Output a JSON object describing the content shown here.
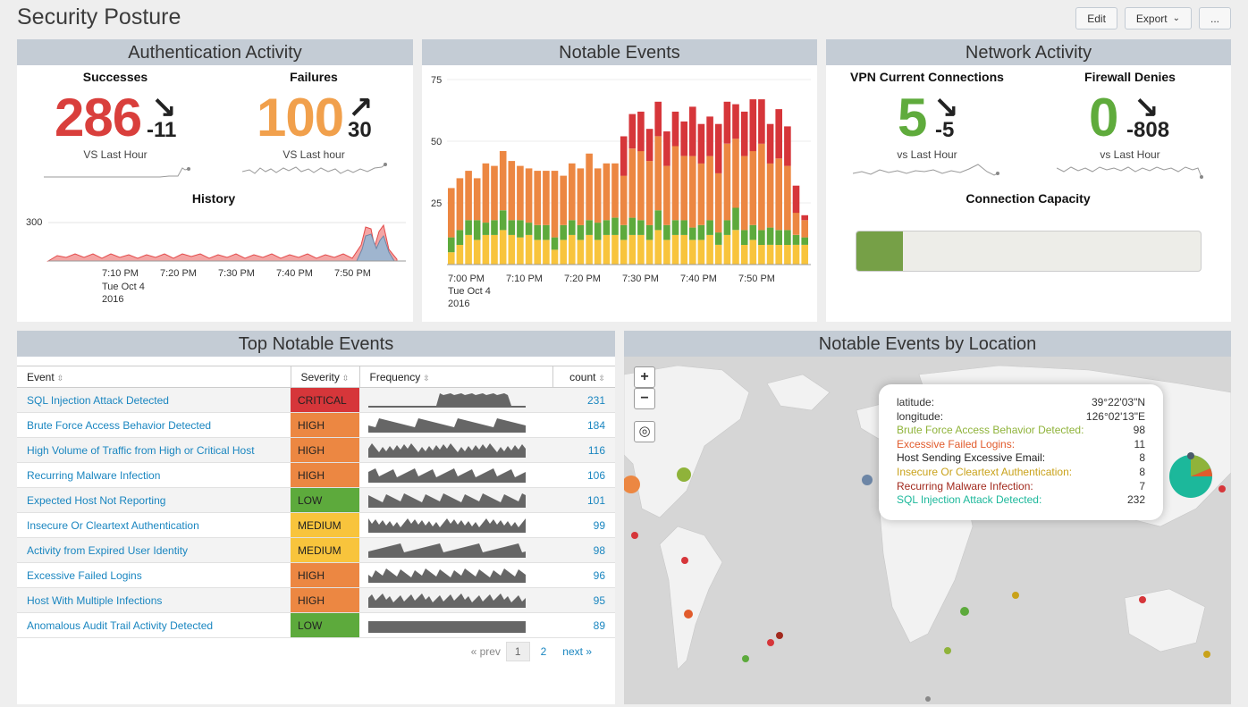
{
  "page": {
    "title": "Security Posture"
  },
  "actions": {
    "edit": "Edit",
    "export": "Export",
    "more": "..."
  },
  "auth": {
    "title": "Authentication Activity",
    "successes": {
      "label": "Successes",
      "value": "286",
      "delta": "-11",
      "sublabel": "VS Last Hour",
      "color": "#d93f3c"
    },
    "failures": {
      "label": "Failures",
      "value": "100",
      "delta": "30",
      "sublabel": "VS Last hour",
      "color": "#f1a04c"
    },
    "history": {
      "title": "History",
      "y_tick": "300",
      "x_ticks": [
        "7:10 PM",
        "7:20 PM",
        "7:30 PM",
        "7:40 PM",
        "7:50 PM"
      ],
      "x_sub": [
        "Tue Oct 4",
        "2016"
      ]
    }
  },
  "notable": {
    "title": "Notable Events",
    "y_ticks": [
      "75",
      "50",
      "25"
    ],
    "x_ticks": [
      "7:00 PM",
      "7:10 PM",
      "7:20 PM",
      "7:30 PM",
      "7:40 PM",
      "7:50 PM"
    ],
    "x_sub": [
      "Tue Oct 4",
      "2016"
    ],
    "colors": {
      "low": "#f8c43c",
      "medium": "#5daa3c",
      "high": "#ec8742",
      "critical": "#d6363a"
    }
  },
  "chart_data": {
    "type": "bar",
    "title": "Notable Events",
    "ylim": [
      0,
      75
    ],
    "x_start": "7:00 PM",
    "x_end": "8:00 PM",
    "series": [
      {
        "name": "low",
        "values": [
          5,
          8,
          12,
          10,
          12,
          12,
          14,
          12,
          11,
          12,
          10,
          10,
          6,
          10,
          12,
          10,
          12,
          10,
          12,
          12,
          10,
          12,
          12,
          10,
          14,
          10,
          12,
          12,
          10,
          10,
          12,
          8,
          12,
          14,
          8,
          10,
          8,
          8,
          8,
          8,
          8,
          8
        ]
      },
      {
        "name": "medium",
        "values": [
          6,
          6,
          6,
          8,
          5,
          6,
          8,
          6,
          7,
          5,
          6,
          6,
          5,
          6,
          6,
          6,
          6,
          7,
          6,
          7,
          6,
          7,
          6,
          6,
          8,
          6,
          6,
          6,
          5,
          6,
          6,
          5,
          6,
          9,
          6,
          6,
          6,
          7,
          6,
          6,
          4,
          3
        ]
      },
      {
        "name": "high",
        "values": [
          20,
          21,
          20,
          17,
          24,
          22,
          24,
          24,
          22,
          22,
          22,
          22,
          27,
          20,
          23,
          23,
          27,
          22,
          23,
          22,
          20,
          28,
          28,
          26,
          30,
          24,
          30,
          26,
          29,
          25,
          26,
          24,
          31,
          28,
          30,
          30,
          35,
          26,
          29,
          26,
          9,
          7
        ]
      },
      {
        "name": "critical",
        "values": [
          0,
          0,
          0,
          0,
          0,
          0,
          0,
          0,
          0,
          0,
          0,
          0,
          0,
          0,
          0,
          0,
          0,
          0,
          0,
          0,
          16,
          14,
          16,
          13,
          14,
          14,
          14,
          14,
          20,
          16,
          16,
          20,
          17,
          14,
          18,
          21,
          18,
          16,
          20,
          16,
          11,
          2
        ]
      }
    ]
  },
  "network": {
    "title": "Network Activity",
    "vpn": {
      "label": "VPN Current Connections",
      "value": "5",
      "delta": "-5",
      "sublabel": "vs Last Hour",
      "color": "#5fab3c"
    },
    "firewall": {
      "label": "Firewall Denies",
      "value": "0",
      "delta": "-808",
      "sublabel": "vs Last Hour",
      "color": "#5fab3c"
    },
    "capacity": {
      "label": "Connection Capacity",
      "fraction": 0.135,
      "color": "#76a047"
    }
  },
  "top_events": {
    "title": "Top Notable Events",
    "columns": [
      "Event",
      "Severity",
      "Frequency",
      "count"
    ],
    "rows": [
      {
        "event": "SQL Injection Attack Detected",
        "severity": "CRITICAL",
        "count": "231"
      },
      {
        "event": "Brute Force Access Behavior Detected",
        "severity": "HIGH",
        "count": "184"
      },
      {
        "event": "High Volume of Traffic from High or Critical Host",
        "severity": "HIGH",
        "count": "116"
      },
      {
        "event": "Recurring Malware Infection",
        "severity": "HIGH",
        "count": "106"
      },
      {
        "event": "Expected Host Not Reporting",
        "severity": "LOW",
        "count": "101"
      },
      {
        "event": "Insecure Or Cleartext Authentication",
        "severity": "MEDIUM",
        "count": "99"
      },
      {
        "event": "Activity from Expired User Identity",
        "severity": "MEDIUM",
        "count": "98"
      },
      {
        "event": "Excessive Failed Logins",
        "severity": "HIGH",
        "count": "96"
      },
      {
        "event": "Host With Multiple Infections",
        "severity": "HIGH",
        "count": "95"
      },
      {
        "event": "Anomalous Audit Trail Activity Detected",
        "severity": "LOW",
        "count": "89"
      }
    ],
    "severity_colors": {
      "CRITICAL": "#d6363a",
      "HIGH": "#ec8742",
      "MEDIUM": "#f8c43c",
      "LOW": "#5daa3c"
    },
    "pager": {
      "prev": "« prev",
      "page1": "1",
      "page2": "2",
      "next": "next »"
    }
  },
  "map": {
    "title": "Notable Events by Location",
    "zoom_in": "+",
    "zoom_out": "−",
    "tooltip": {
      "latitude_label": "latitude:",
      "latitude": "39°22'03\"N",
      "longitude_label": "longitude:",
      "longitude": "126°02'13\"E",
      "items": [
        {
          "label": "Brute Force Access Behavior Detected:",
          "value": "98",
          "color": "#8fb33a"
        },
        {
          "label": "Excessive Failed Logins:",
          "value": "11",
          "color": "#e15b2c"
        },
        {
          "label": "Host Sending Excessive Email:",
          "value": "8",
          "color": "#222222"
        },
        {
          "label": "Insecure Or Cleartext Authentication:",
          "value": "8",
          "color": "#c9a21a"
        },
        {
          "label": "Recurring Malware Infection:",
          "value": "7",
          "color": "#a22a1e"
        },
        {
          "label": "SQL Injection Attack Detected:",
          "value": "232",
          "color": "#1cb89b"
        }
      ]
    }
  }
}
